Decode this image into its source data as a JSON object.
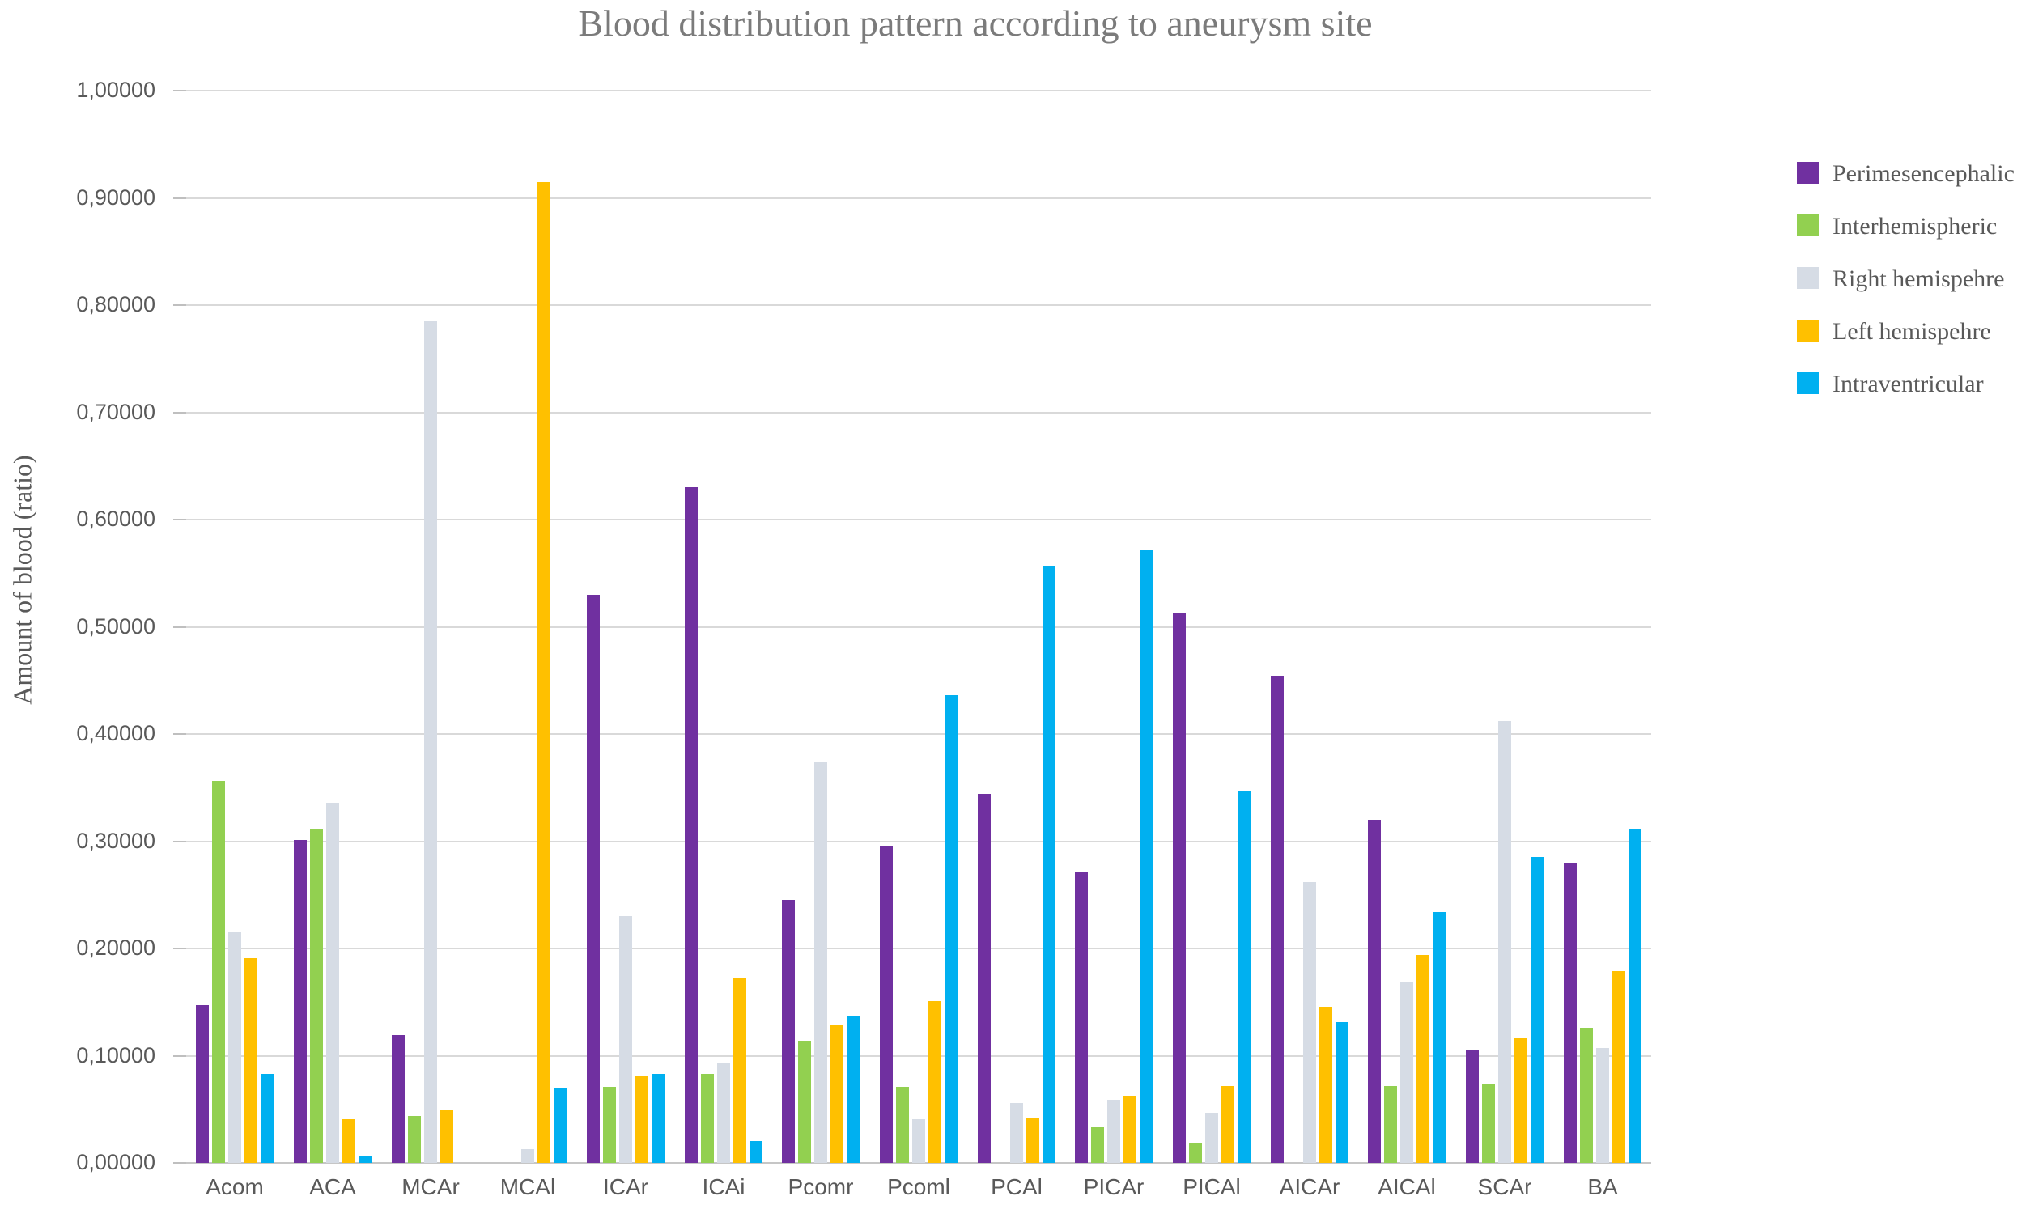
{
  "title": "Blood distribution pattern according to aneurysm site",
  "y_axis": {
    "label": "Amount of blood (ratio)",
    "tick_labels": [
      "1,00000",
      "0,90000",
      "0,80000",
      "0,70000",
      "0,60000",
      "0,50000",
      "0,40000",
      "0,30000",
      "0,20000",
      "0,10000",
      "0,00000"
    ]
  },
  "colors": {
    "perimesencephalic": "#7030A0",
    "interhemispheric": "#92D050",
    "right_hemisphere": "#D6DCE5",
    "left_hemisphere": "#FFC000",
    "intraventricular": "#00B0F0",
    "gridline": "#d9d9d9",
    "text": "#595959"
  },
  "chart_data": {
    "type": "bar",
    "title": "Blood distribution pattern according to aneurysm site",
    "xlabel": "",
    "ylabel": "Amount of blood (ratio)",
    "ylim": [
      0,
      1
    ],
    "grid": true,
    "legend_position": "right",
    "categories": [
      "Acom",
      "ACA",
      "MCAr",
      "MCAl",
      "ICAr",
      "ICAi",
      "Pcomr",
      "Pcoml",
      "PCAl",
      "PICAr",
      "PICAl",
      "AICAr",
      "AICAl",
      "SCAr",
      "BA"
    ],
    "series": [
      {
        "name": "Perimesencephalic",
        "color": "#7030A0",
        "values": [
          0.147,
          0.301,
          0.119,
          0,
          0.53,
          0.63,
          0.245,
          0.296,
          0.344,
          0.271,
          0.513,
          0.454,
          0.32,
          0.105,
          0.279
        ]
      },
      {
        "name": "Interhemispheric",
        "color": "#92D050",
        "values": [
          0.356,
          0.311,
          0.044,
          0,
          0.071,
          0.083,
          0.114,
          0.071,
          0,
          0.034,
          0.019,
          0,
          0.072,
          0.074,
          0.126
        ]
      },
      {
        "name": "Right hemispehre",
        "color": "#D6DCE5",
        "values": [
          0.215,
          0.336,
          0.785,
          0.013,
          0.23,
          0.093,
          0.374,
          0.041,
          0.056,
          0.059,
          0.047,
          0.262,
          0.169,
          0.412,
          0.107
        ]
      },
      {
        "name": "Left hemispehre",
        "color": "#FFC000",
        "values": [
          0.191,
          0.041,
          0.05,
          0.915,
          0.081,
          0.173,
          0.129,
          0.151,
          0.042,
          0.063,
          0.072,
          0.146,
          0.194,
          0.116,
          0.179
        ]
      },
      {
        "name": "Intraventricular",
        "color": "#00B0F0",
        "values": [
          0.083,
          0.006,
          0,
          0.07,
          0.083,
          0.02,
          0.137,
          0.436,
          0.557,
          0.571,
          0.347,
          0.131,
          0.234,
          0.285,
          0.312
        ]
      }
    ]
  }
}
